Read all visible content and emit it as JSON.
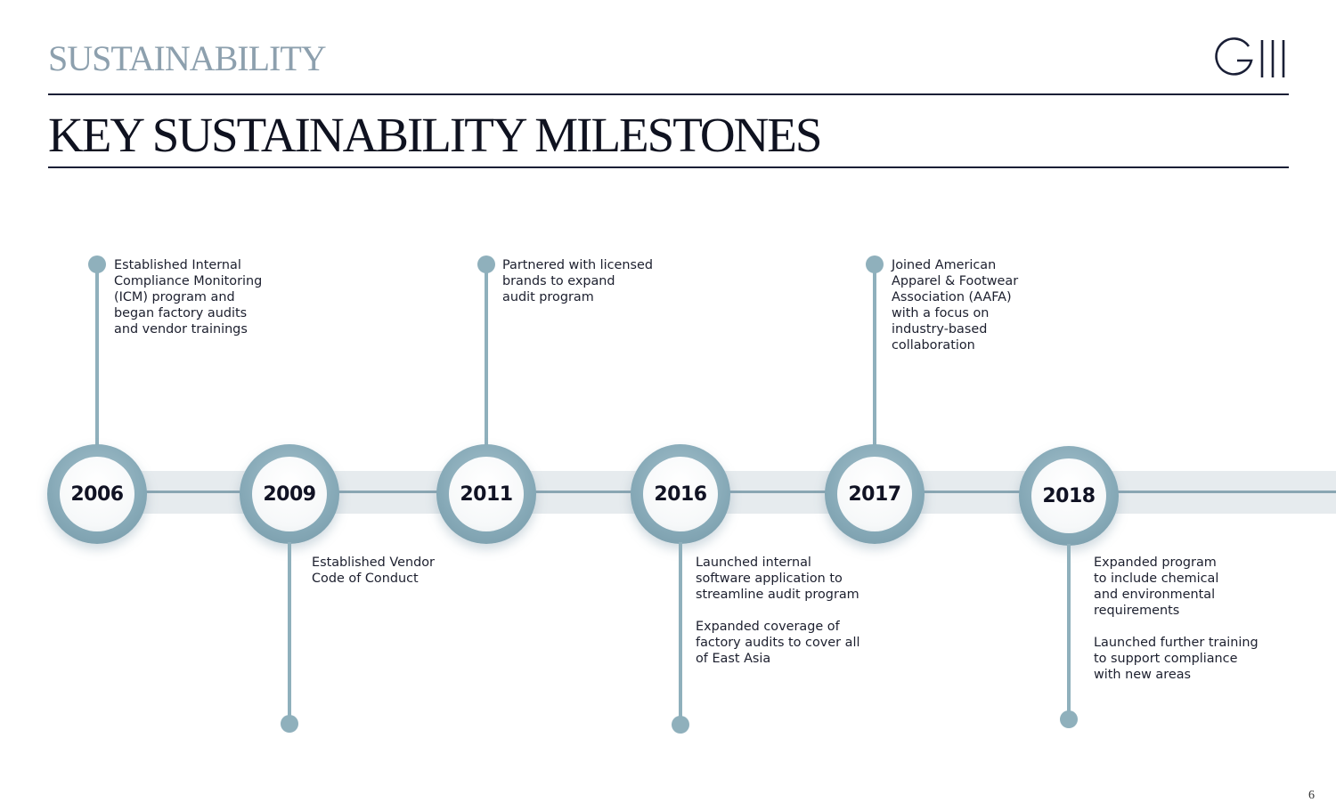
{
  "header": {
    "section_label": "SUSTAINABILITY",
    "title": "KEY SUSTAINABILITY MILESTONES",
    "logo_text": "GIII"
  },
  "timeline": {
    "milestones": [
      {
        "year": "2006",
        "position": "above",
        "text": "Established Internal\nCompliance Monitoring\n(ICM) program and\nbegan factory audits\nand vendor trainings"
      },
      {
        "year": "2009",
        "position": "below",
        "text": "Established Vendor\nCode of Conduct"
      },
      {
        "year": "2011",
        "position": "above",
        "text": "Partnered with licensed\nbrands to expand\naudit program"
      },
      {
        "year": "2016",
        "position": "below",
        "text": "Launched internal\nsoftware application to\nstreamline audit program\n\nExpanded coverage of\nfactory audits to cover all\nof East Asia"
      },
      {
        "year": "2017",
        "position": "above",
        "text": "Joined American\nApparel & Footwear\nAssociation (AAFA)\nwith a focus on\nindustry-based\ncollaboration"
      },
      {
        "year": "2018",
        "position": "below",
        "text": "Expanded program\nto include chemical\nand environmental\nrequirements\n\nLaunched further training\nto support compliance\nwith new areas"
      }
    ]
  },
  "colors": {
    "accent": "#8fb0bc",
    "navy": "#1a1f36",
    "band": "#e6ebee"
  },
  "footer": {
    "page_number": "6"
  }
}
